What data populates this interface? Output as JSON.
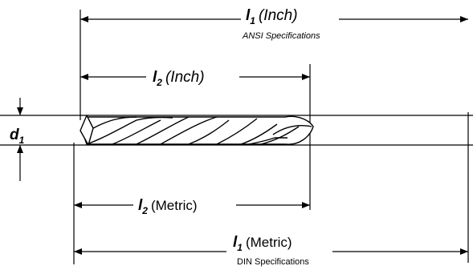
{
  "dimensions": {
    "l1_inch": {
      "symbol": "l",
      "subscript": "1",
      "qualifier": "(Inch)",
      "spec": "ANSI Specifications"
    },
    "l2_inch": {
      "symbol": "l",
      "subscript": "2",
      "qualifier": "(Inch)"
    },
    "d1": {
      "symbol": "d",
      "subscript": "1"
    },
    "l2_metric": {
      "symbol": "l",
      "subscript": "2",
      "qualifier": "(Metric)"
    },
    "l1_metric": {
      "symbol": "l",
      "subscript": "1",
      "qualifier": "(Metric)",
      "spec": "DIN Specifications"
    }
  }
}
